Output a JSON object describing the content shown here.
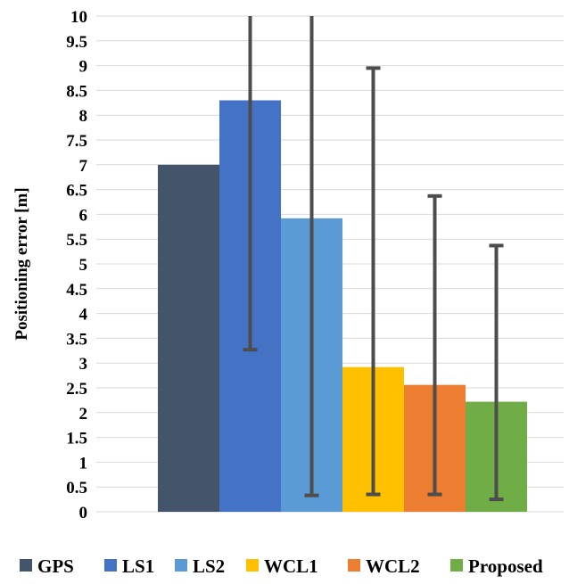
{
  "chart_data": {
    "type": "bar",
    "title": "",
    "xlabel": "",
    "ylabel": "Positioning error [m]",
    "ylim": [
      0,
      10
    ],
    "ytick_step": 0.5,
    "yticks": [
      "0",
      "0.5",
      "1",
      "1.5",
      "2",
      "2.5",
      "3",
      "3.5",
      "4",
      "4.5",
      "5",
      "5.5",
      "6",
      "6.5",
      "7",
      "7.5",
      "8",
      "8.5",
      "9",
      "9.5",
      "10"
    ],
    "grid": true,
    "legend_position": "bottom",
    "series": [
      {
        "name": "GPS",
        "value": 7.0,
        "color": "#44546a",
        "error_low": null,
        "error_high": null
      },
      {
        "name": "LS1",
        "value": 8.3,
        "color": "#4472c4",
        "error_low": 3.27,
        "error_high": 10
      },
      {
        "name": "LS2",
        "value": 5.92,
        "color": "#5b9bd5",
        "error_low": 0.33,
        "error_high": 10
      },
      {
        "name": "WCL1",
        "value": 2.92,
        "color": "#ffc000",
        "error_low": 0.35,
        "error_high": 8.95
      },
      {
        "name": "WCL2",
        "value": 2.56,
        "color": "#ed7d31",
        "error_low": 0.35,
        "error_high": 6.37
      },
      {
        "name": "Proposed",
        "value": 2.22,
        "color": "#70ad47",
        "error_low": 0.25,
        "error_high": 5.37
      }
    ]
  }
}
